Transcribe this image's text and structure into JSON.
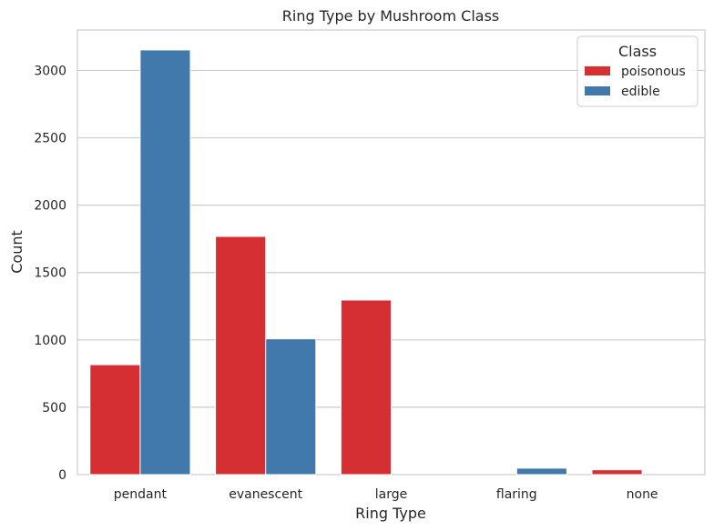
{
  "chart_data": {
    "type": "bar",
    "title": "Ring Type by Mushroom Class",
    "xlabel": "Ring Type",
    "ylabel": "Count",
    "categories": [
      "pendant",
      "evanescent",
      "large",
      "flaring",
      "none"
    ],
    "series": [
      {
        "name": "poisonous",
        "color": "#d62f33",
        "values": [
          816,
          1768,
          1296,
          0,
          36
        ]
      },
      {
        "name": "edible",
        "color": "#4179ac",
        "values": [
          3152,
          1008,
          0,
          48,
          0
        ]
      }
    ],
    "ylim": [
      0,
      3300
    ],
    "yticks": [
      0,
      500,
      1000,
      1500,
      2000,
      2500,
      3000
    ],
    "grid": true,
    "legend": {
      "title": "Class",
      "placement": "top-right"
    }
  }
}
